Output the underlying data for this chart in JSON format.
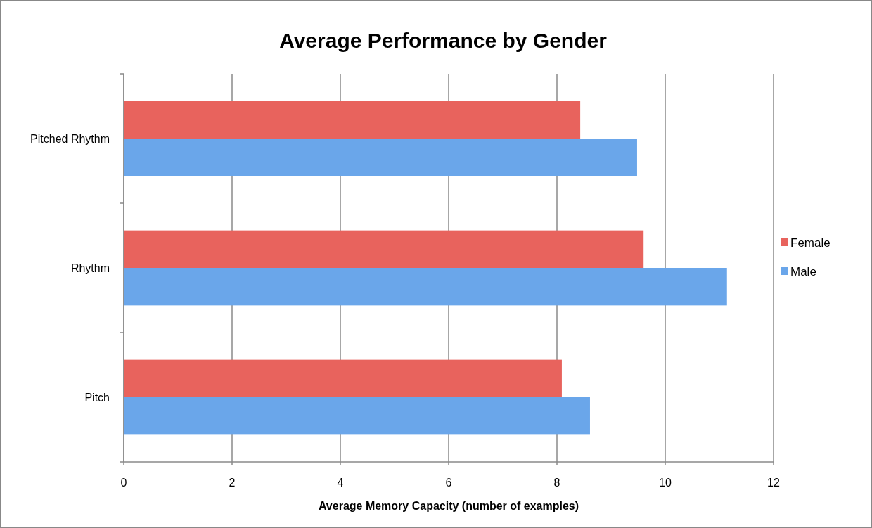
{
  "chart_data": {
    "type": "bar",
    "orientation": "horizontal",
    "title": "Average Performance by Gender",
    "xlabel": "Average Memory Capacity (number of examples)",
    "categories": [
      "Pitched Rhythm",
      "Rhythm",
      "Pitch"
    ],
    "series": [
      {
        "name": "Female",
        "color": "#e8635d",
        "values": [
          8.43,
          9.6,
          8.09
        ]
      },
      {
        "name": "Male",
        "color": "#6aa6ea",
        "values": [
          9.48,
          11.14,
          8.61
        ]
      }
    ],
    "xlim": [
      0,
      12
    ],
    "xticks": [
      0,
      2,
      4,
      6,
      8,
      10,
      12
    ],
    "grid": "x",
    "legend": "right"
  }
}
